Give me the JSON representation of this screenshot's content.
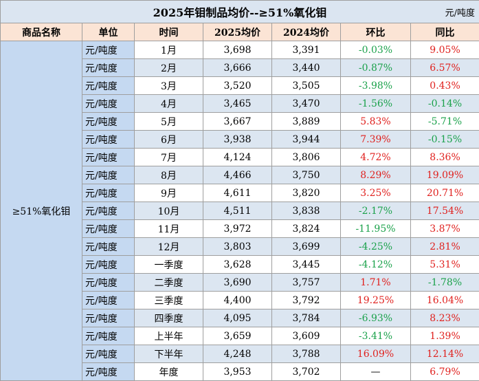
{
  "header": {
    "title": "2025年钼制品均价--≥51%氧化钼",
    "unit": "元/吨度"
  },
  "table": {
    "columns": [
      "商品名称",
      "单位",
      "时间",
      "2025均价",
      "2024均价",
      "环比",
      "同比"
    ],
    "product": "≥51%氧化钼",
    "rows": [
      [
        "元/吨度",
        "1月",
        "3,698",
        "3,391",
        "-0.03%",
        "9.05%"
      ],
      [
        "元/吨度",
        "2月",
        "3,666",
        "3,440",
        "-0.87%",
        "6.57%"
      ],
      [
        "元/吨度",
        "3月",
        "3,520",
        "3,505",
        "-3.98%",
        "0.43%"
      ],
      [
        "元/吨度",
        "4月",
        "3,465",
        "3,470",
        "-1.56%",
        "-0.14%"
      ],
      [
        "元/吨度",
        "5月",
        "3,667",
        "3,889",
        "5.83%",
        "-5.71%"
      ],
      [
        "元/吨度",
        "6月",
        "3,938",
        "3,944",
        "7.39%",
        "-0.15%"
      ],
      [
        "元/吨度",
        "7月",
        "4,124",
        "3,806",
        "4.72%",
        "8.36%"
      ],
      [
        "元/吨度",
        "8月",
        "4,466",
        "3,750",
        "8.29%",
        "19.09%"
      ],
      [
        "元/吨度",
        "9月",
        "4,611",
        "3,820",
        "3.25%",
        "20.71%"
      ],
      [
        "元/吨度",
        "10月",
        "4,511",
        "3,838",
        "-2.17%",
        "17.54%"
      ],
      [
        "元/吨度",
        "11月",
        "3,972",
        "3,824",
        "-11.95%",
        "3.87%"
      ],
      [
        "元/吨度",
        "12月",
        "3,803",
        "3,699",
        "-4.25%",
        "2.81%"
      ],
      [
        "元/吨度",
        "一季度",
        "3,628",
        "3,445",
        "-4.12%",
        "5.31%"
      ],
      [
        "元/吨度",
        "二季度",
        "3,690",
        "3,757",
        "1.71%",
        "-1.78%"
      ],
      [
        "元/吨度",
        "三季度",
        "4,400",
        "3,792",
        "19.25%",
        "16.04%"
      ],
      [
        "元/吨度",
        "四季度",
        "4,095",
        "3,784",
        "-6.93%",
        "8.23%"
      ],
      [
        "元/吨度",
        "上半年",
        "3,659",
        "3,609",
        "-3.41%",
        "1.39%"
      ],
      [
        "元/吨度",
        "下半年",
        "4,248",
        "3,788",
        "16.09%",
        "12.14%"
      ],
      [
        "元/吨度",
        "年度",
        "3,953",
        "3,702",
        "—",
        "6.79%"
      ]
    ]
  }
}
